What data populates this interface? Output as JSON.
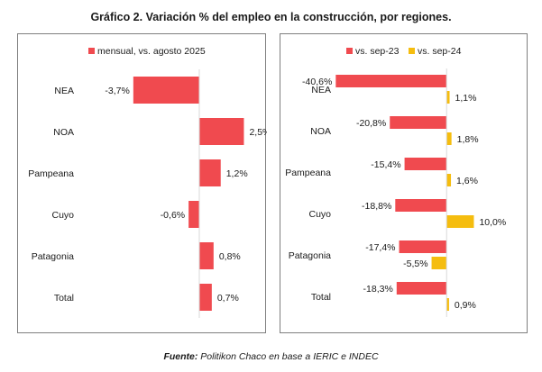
{
  "title": "Gráfico 2. Variación % del empleo en la construcción, por regiones.",
  "source": {
    "prefix": "Fuente:",
    "text": " Politikon Chaco en base a IERIC e INDEC"
  },
  "colors": {
    "red": "#f04a4f",
    "yellow": "#f5bd0f"
  },
  "chart_data": [
    {
      "type": "bar",
      "orientation": "horizontal",
      "categories": [
        "NEA",
        "NOA",
        "Pampeana",
        "Cuyo",
        "Patagonia",
        "Total"
      ],
      "series": [
        {
          "name": "mensual, vs. agosto 2025",
          "values": [
            -3.7,
            2.5,
            1.2,
            -0.6,
            0.8,
            0.7
          ],
          "labels": [
            "-3,7%",
            "2,5%",
            "1,2%",
            "-0,6%",
            "0,8%",
            "0,7%"
          ],
          "color": "#f04a4f"
        }
      ],
      "legend": "top-center",
      "grid": false,
      "xlim": [
        -4.5,
        4.5
      ]
    },
    {
      "type": "bar",
      "orientation": "horizontal",
      "categories": [
        "NEA",
        "NOA",
        "Pampeana",
        "Cuyo",
        "Patagonia",
        "Total"
      ],
      "series": [
        {
          "name": "vs. sep-23",
          "values": [
            -40.6,
            -20.8,
            -15.4,
            -18.8,
            -17.4,
            -18.3
          ],
          "labels": [
            "-40,6%",
            "-20,8%",
            "-15,4%",
            "-18,8%",
            "-17,4%",
            "-18,3%"
          ],
          "color": "#f04a4f"
        },
        {
          "name": "vs. sep-24",
          "values": [
            1.1,
            1.8,
            1.6,
            10.0,
            -5.5,
            0.9
          ],
          "labels": [
            "1,1%",
            "1,8%",
            "1,6%",
            "10,0%",
            "-5,5%",
            "0,9%"
          ],
          "color": "#f5bd0f"
        }
      ],
      "legend": "top-center",
      "grid": false,
      "xlim": [
        -45,
        30
      ]
    }
  ]
}
